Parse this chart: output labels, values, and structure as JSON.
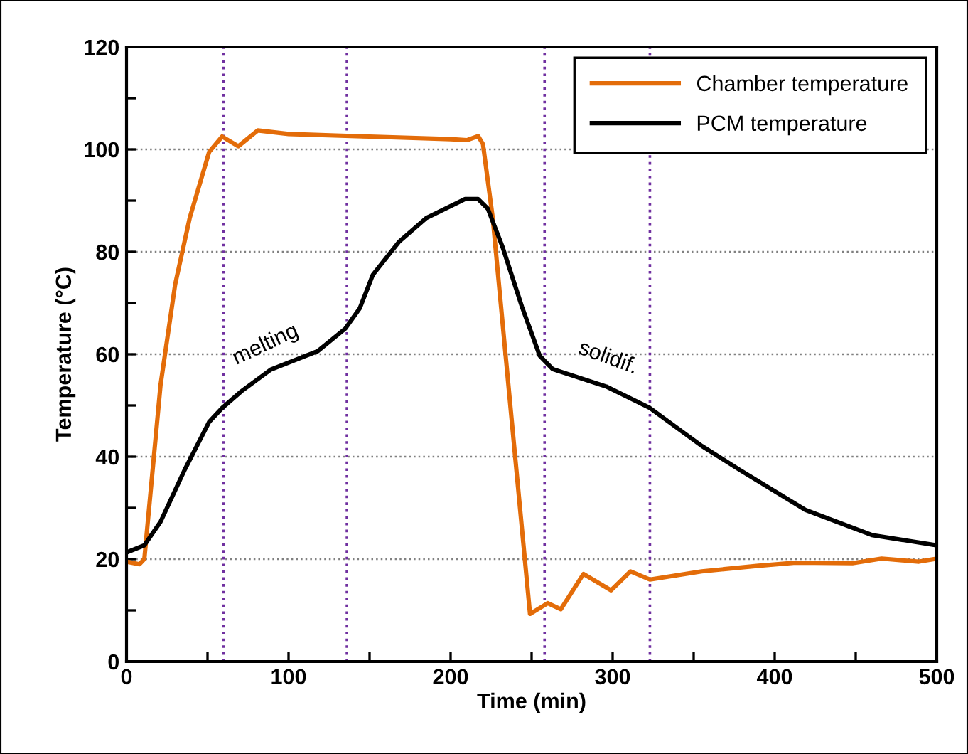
{
  "chart_data": {
    "type": "line",
    "xlabel": "Time (min)",
    "ylabel": "Temperature (°C)",
    "xlim": [
      0,
      500
    ],
    "ylim": [
      0,
      120
    ],
    "xticks": [
      0,
      {
        "value": 50,
        "label": null
      },
      100,
      {
        "value": 150,
        "label": null
      },
      200,
      {
        "value": 250,
        "label": null
      },
      300,
      {
        "value": 350,
        "label": null
      },
      400,
      {
        "value": 450,
        "label": null
      },
      500
    ],
    "yticks": [
      0,
      {
        "value": 10,
        "label": null
      },
      20,
      {
        "value": 30,
        "label": null
      },
      40,
      {
        "value": 50,
        "label": null
      },
      60,
      {
        "value": 70,
        "label": null
      },
      80,
      {
        "value": 90,
        "label": null
      },
      100,
      {
        "value": 110,
        "label": null
      },
      120
    ],
    "grid": "y",
    "legend": "top right",
    "marker": "none",
    "line_style": "solid",
    "series": [
      {
        "name": "Chamber temperature",
        "color": "#e36c09",
        "x": [
          0,
          8,
          11,
          21,
          30,
          39,
          51,
          59,
          69,
          81,
          100,
          150,
          200,
          210,
          217,
          220,
          226,
          237,
          249,
          260,
          268,
          282,
          299,
          311,
          323,
          355,
          390,
          413,
          448,
          466,
          489,
          500
        ],
        "values": [
          19.5,
          19,
          20,
          54,
          73.6,
          86.6,
          99.5,
          102.5,
          100.6,
          103.7,
          103,
          102.5,
          102,
          101.8,
          102.6,
          101,
          86.6,
          49.5,
          9.3,
          11.4,
          10.2,
          17.1,
          13.9,
          17.6,
          16,
          17.6,
          18.7,
          19.3,
          19.2,
          20.1,
          19.5,
          20.1
        ]
      },
      {
        "name": "PCM temperature",
        "color": "#000000",
        "x": [
          0,
          11,
          21,
          36,
          51,
          59,
          71,
          89,
          118,
          135,
          144,
          152,
          168,
          185,
          209,
          217,
          223,
          232,
          244,
          255,
          263,
          296,
          323,
          355,
          378,
          419,
          460,
          500
        ],
        "values": [
          21.3,
          22.7,
          27.3,
          37.5,
          46.8,
          49.5,
          52.8,
          57,
          60.6,
          65,
          69,
          75.5,
          81.9,
          86.6,
          90.3,
          90.3,
          88.4,
          81,
          69.3,
          59.7,
          57.1,
          53.7,
          49.5,
          42.1,
          37.5,
          29.6,
          24.7,
          22.7
        ]
      }
    ],
    "ref_lines": [
      {
        "axis": "x",
        "value": 60,
        "color": "#7030a0",
        "line_style": "dotted"
      },
      {
        "axis": "x",
        "value": 136,
        "color": "#7030a0",
        "line_style": "dotted"
      },
      {
        "axis": "x",
        "value": 258,
        "color": "#7030a0",
        "line_style": "dotted"
      },
      {
        "axis": "x",
        "value": 323,
        "color": "#7030a0",
        "line_style": "dotted"
      }
    ],
    "annotations": [
      "melting",
      "solidif."
    ]
  }
}
